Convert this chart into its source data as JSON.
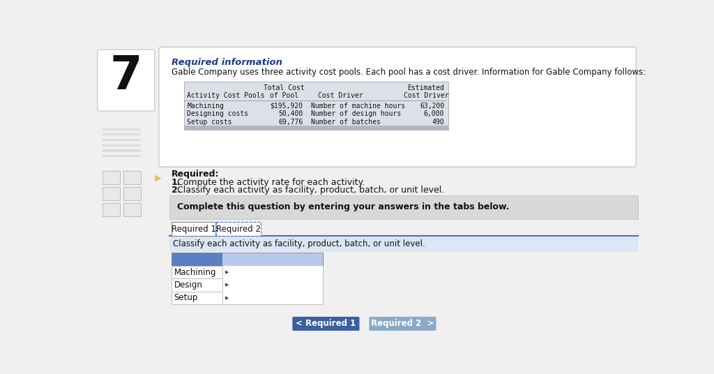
{
  "page_number": "7",
  "required_info_title": "Required information",
  "intro_text": "Gable Company uses three activity cost pools. Each pool has a cost driver. Information for Gable Company follows:",
  "table_col0_header": "Activity Cost Pools",
  "table_col1_header1": "Total Cost",
  "table_col1_header2": "of Pool",
  "table_col2_header": "Cost Driver",
  "table_col3_header1": "Estimated",
  "table_col3_header2": "Cost Driver",
  "table_rows": [
    [
      "Machining",
      "$195,920",
      "Number of machine hours",
      "63,200"
    ],
    [
      "Designing costs",
      "50,400",
      "Number of design hours",
      "6,000"
    ],
    [
      "Setup costs",
      "69,776",
      "Number of batches",
      "490"
    ]
  ],
  "required_label": "Required:",
  "required_item1": "Compute the activity rate for each activity.",
  "required_item2": "Classify each activity as facility, product, batch, or unit level.",
  "complete_question_text": "Complete this question by entering your answers in the tabs below.",
  "tab1_label": "Required 1",
  "tab2_label": "Required 2",
  "classify_text": "Classify each activity as facility, product, batch, or unit level.",
  "activity_rows": [
    "Machining",
    "Design",
    "Setup"
  ],
  "btn1_label": "< Required 1",
  "btn2_label": "Required 2  >",
  "page_bg": "#f0f0f0",
  "card_bg": "#ffffff",
  "card_border": "#c8c8c8",
  "table_bg": "#dde0e8",
  "info_title_color": "#1a3a8a",
  "gray_banner_bg": "#d8d8d8",
  "blue_banner_bg": "#dce6f4",
  "input_header_bg": "#5b7fc4",
  "input_col2_bg": "#b8c8e8",
  "btn1_bg": "#3a5fa0",
  "btn2_bg": "#8aaaca",
  "left_box_bg": "#ffffff",
  "left_box_border": "#cccccc"
}
